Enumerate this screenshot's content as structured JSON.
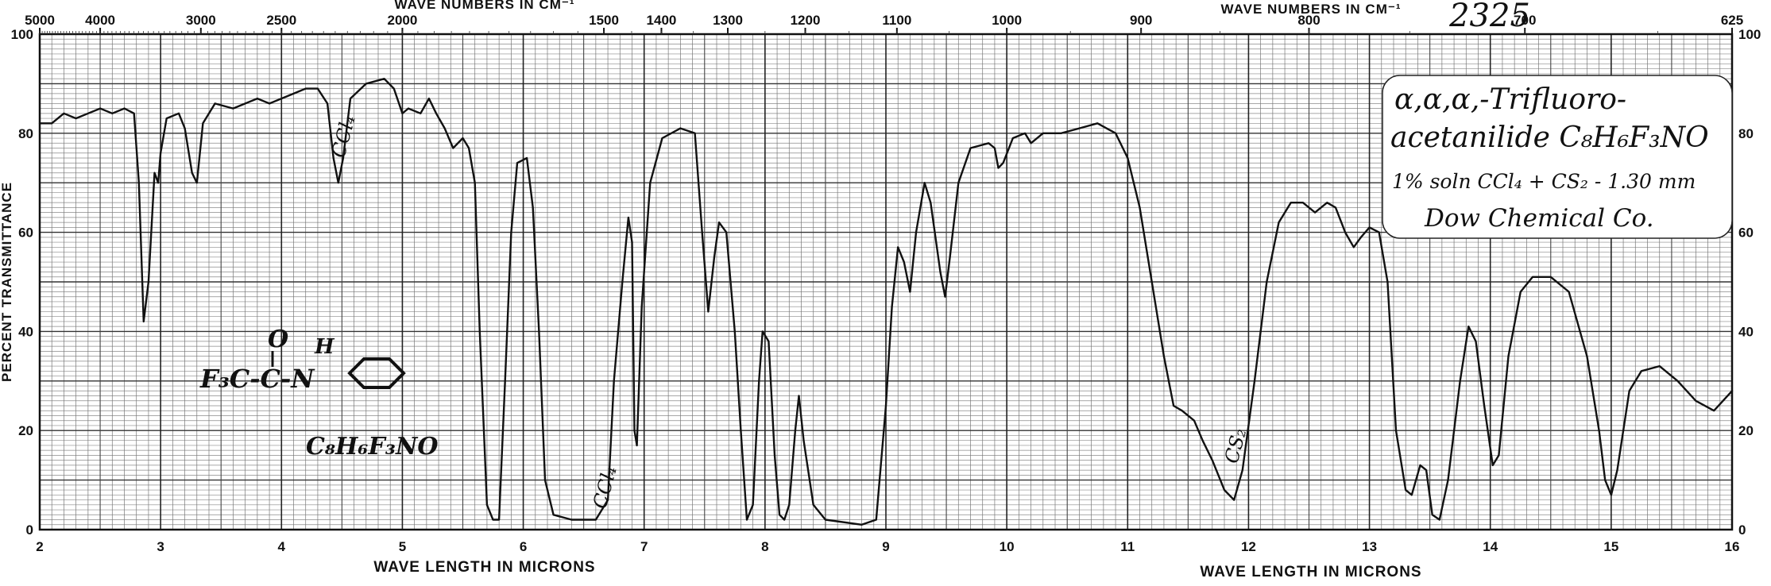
{
  "header": {
    "sample_number": "2325"
  },
  "label_box": {
    "compound": "α,α,α,-Trifluoro-",
    "compound_line2": "acetanilide  C₈H₆F₃NO",
    "solution": "1% soln CCl₄ + CS₂ - 1.30 mm",
    "source": "Dow Chemical Co."
  },
  "annotations": {
    "structure_formula": "C₈H₆F₃NO",
    "struct_f3c": "F₃C-C-N",
    "struct_o": "O",
    "struct_h": "H",
    "ccl4_a": "CCl₄",
    "ccl4_b": "CCl₄",
    "cs2": "CS₂"
  },
  "chart_data": {
    "type": "line",
    "title": "",
    "xlabel_top_left": "WAVE NUMBERS IN CM⁻¹",
    "xlabel_top_right": "WAVE NUMBERS IN CM⁻¹",
    "xlabel_bottom_left": "WAVE LENGTH IN MICRONS",
    "xlabel_bottom_right": "WAVE LENGTH IN MICRONS",
    "ylabel": "PERCENT TRANSMITTANCE",
    "xlim": [
      2,
      16
    ],
    "ylim": [
      0,
      100
    ],
    "grid": true,
    "x_ticks": [
      2,
      3,
      4,
      5,
      6,
      7,
      8,
      9,
      10,
      11,
      12,
      13,
      14,
      15,
      16
    ],
    "x_tick_labels": [
      "2",
      "3",
      "4",
      "5",
      "6",
      "7",
      "8",
      "9",
      "10",
      "11",
      "12",
      "13",
      "14",
      "15",
      "16"
    ],
    "y_ticks": [
      0,
      20,
      40,
      60,
      80,
      100
    ],
    "y_tick_labels_left": [
      "0",
      "20",
      "40",
      "60",
      "80",
      "100"
    ],
    "y_tick_labels_right": [
      "0",
      "20",
      "40",
      "60",
      "80",
      "100"
    ],
    "wavenumber_ticks": [
      {
        "x": 2.0,
        "label": "5000"
      },
      {
        "x": 2.5,
        "label": "4000"
      },
      {
        "x": 3.333,
        "label": "3000"
      },
      {
        "x": 4.0,
        "label": "2500"
      },
      {
        "x": 5.0,
        "label": "2000"
      },
      {
        "x": 6.667,
        "label": "1500"
      },
      {
        "x": 7.143,
        "label": "1400"
      },
      {
        "x": 7.692,
        "label": "1300"
      },
      {
        "x": 8.333,
        "label": "1200"
      },
      {
        "x": 9.091,
        "label": "1100"
      },
      {
        "x": 10.0,
        "label": "1000"
      },
      {
        "x": 11.111,
        "label": "900"
      },
      {
        "x": 12.5,
        "label": "800"
      },
      {
        "x": 14.286,
        "label": "700"
      },
      {
        "x": 16.0,
        "label": "625"
      }
    ],
    "series": [
      {
        "color": "#111111",
        "points": [
          [
            2.0,
            82
          ],
          [
            2.1,
            82
          ],
          [
            2.2,
            84
          ],
          [
            2.3,
            83
          ],
          [
            2.4,
            84
          ],
          [
            2.5,
            85
          ],
          [
            2.6,
            84
          ],
          [
            2.7,
            85
          ],
          [
            2.78,
            84
          ],
          [
            2.82,
            70
          ],
          [
            2.86,
            42
          ],
          [
            2.9,
            50
          ],
          [
            2.95,
            72
          ],
          [
            2.98,
            70
          ],
          [
            3.0,
            76
          ],
          [
            3.05,
            83
          ],
          [
            3.15,
            84
          ],
          [
            3.2,
            81
          ],
          [
            3.26,
            72
          ],
          [
            3.3,
            70
          ],
          [
            3.35,
            82
          ],
          [
            3.45,
            86
          ],
          [
            3.6,
            85
          ],
          [
            3.7,
            86
          ],
          [
            3.8,
            87
          ],
          [
            3.9,
            86
          ],
          [
            4.0,
            87
          ],
          [
            4.1,
            88
          ],
          [
            4.2,
            89
          ],
          [
            4.3,
            89
          ],
          [
            4.38,
            86
          ],
          [
            4.43,
            75
          ],
          [
            4.47,
            70
          ],
          [
            4.51,
            75
          ],
          [
            4.57,
            87
          ],
          [
            4.7,
            90
          ],
          [
            4.85,
            91
          ],
          [
            4.93,
            89
          ],
          [
            5.0,
            84
          ],
          [
            5.05,
            85
          ],
          [
            5.15,
            84
          ],
          [
            5.22,
            87
          ],
          [
            5.28,
            84
          ],
          [
            5.35,
            81
          ],
          [
            5.42,
            77
          ],
          [
            5.5,
            79
          ],
          [
            5.55,
            77
          ],
          [
            5.6,
            70
          ],
          [
            5.64,
            40
          ],
          [
            5.7,
            5
          ],
          [
            5.75,
            2
          ],
          [
            5.8,
            2
          ],
          [
            5.85,
            30
          ],
          [
            5.9,
            60
          ],
          [
            5.95,
            74
          ],
          [
            6.03,
            75
          ],
          [
            6.08,
            65
          ],
          [
            6.13,
            40
          ],
          [
            6.18,
            10
          ],
          [
            6.25,
            3
          ],
          [
            6.4,
            2
          ],
          [
            6.6,
            2
          ],
          [
            6.7,
            6
          ],
          [
            6.75,
            30
          ],
          [
            6.82,
            50
          ],
          [
            6.87,
            63
          ],
          [
            6.9,
            58
          ],
          [
            6.92,
            20
          ],
          [
            6.94,
            17
          ],
          [
            6.98,
            45
          ],
          [
            7.05,
            70
          ],
          [
            7.15,
            79
          ],
          [
            7.3,
            81
          ],
          [
            7.42,
            80
          ],
          [
            7.48,
            60
          ],
          [
            7.53,
            44
          ],
          [
            7.58,
            55
          ],
          [
            7.62,
            62
          ],
          [
            7.68,
            60
          ],
          [
            7.75,
            40
          ],
          [
            7.8,
            20
          ],
          [
            7.85,
            2
          ],
          [
            7.9,
            5
          ],
          [
            7.95,
            30
          ],
          [
            7.98,
            40
          ],
          [
            8.03,
            38
          ],
          [
            8.08,
            15
          ],
          [
            8.12,
            3
          ],
          [
            8.16,
            2
          ],
          [
            8.2,
            5
          ],
          [
            8.25,
            20
          ],
          [
            8.28,
            27
          ],
          [
            8.32,
            18
          ],
          [
            8.4,
            5
          ],
          [
            8.5,
            2
          ],
          [
            8.8,
            1
          ],
          [
            8.92,
            2
          ],
          [
            9.0,
            25
          ],
          [
            9.05,
            45
          ],
          [
            9.1,
            57
          ],
          [
            9.15,
            54
          ],
          [
            9.2,
            48
          ],
          [
            9.25,
            60
          ],
          [
            9.32,
            70
          ],
          [
            9.37,
            66
          ],
          [
            9.45,
            52
          ],
          [
            9.49,
            47
          ],
          [
            9.53,
            55
          ],
          [
            9.6,
            70
          ],
          [
            9.7,
            77
          ],
          [
            9.85,
            78
          ],
          [
            9.9,
            77
          ],
          [
            9.93,
            73
          ],
          [
            9.97,
            74
          ],
          [
            10.05,
            79
          ],
          [
            10.15,
            80
          ],
          [
            10.2,
            78
          ],
          [
            10.3,
            80
          ],
          [
            10.45,
            80
          ],
          [
            10.6,
            81
          ],
          [
            10.75,
            82
          ],
          [
            10.9,
            80
          ],
          [
            11.0,
            75
          ],
          [
            11.1,
            65
          ],
          [
            11.2,
            50
          ],
          [
            11.3,
            35
          ],
          [
            11.38,
            25
          ],
          [
            11.45,
            24
          ],
          [
            11.55,
            22
          ],
          [
            11.62,
            18
          ],
          [
            11.7,
            14
          ],
          [
            11.8,
            8
          ],
          [
            11.88,
            6
          ],
          [
            11.95,
            12
          ],
          [
            12.05,
            30
          ],
          [
            12.15,
            50
          ],
          [
            12.25,
            62
          ],
          [
            12.35,
            66
          ],
          [
            12.45,
            66
          ],
          [
            12.55,
            64
          ],
          [
            12.65,
            66
          ],
          [
            12.72,
            65
          ],
          [
            12.8,
            60
          ],
          [
            12.87,
            57
          ],
          [
            12.93,
            59
          ],
          [
            13.0,
            61
          ],
          [
            13.08,
            60
          ],
          [
            13.15,
            50
          ],
          [
            13.22,
            20
          ],
          [
            13.3,
            8
          ],
          [
            13.35,
            7
          ],
          [
            13.42,
            13
          ],
          [
            13.47,
            12
          ],
          [
            13.52,
            3
          ],
          [
            13.58,
            2
          ],
          [
            13.65,
            10
          ],
          [
            13.75,
            30
          ],
          [
            13.82,
            41
          ],
          [
            13.88,
            38
          ],
          [
            13.95,
            25
          ],
          [
            14.02,
            13
          ],
          [
            14.07,
            15
          ],
          [
            14.15,
            35
          ],
          [
            14.25,
            48
          ],
          [
            14.35,
            51
          ],
          [
            14.5,
            51
          ],
          [
            14.65,
            48
          ],
          [
            14.8,
            35
          ],
          [
            14.9,
            20
          ],
          [
            14.95,
            10
          ],
          [
            15.0,
            7
          ],
          [
            15.05,
            12
          ],
          [
            15.15,
            28
          ],
          [
            15.25,
            32
          ],
          [
            15.4,
            33
          ],
          [
            15.55,
            30
          ],
          [
            15.7,
            26
          ],
          [
            15.85,
            24
          ],
          [
            16.0,
            28
          ]
        ]
      }
    ]
  }
}
